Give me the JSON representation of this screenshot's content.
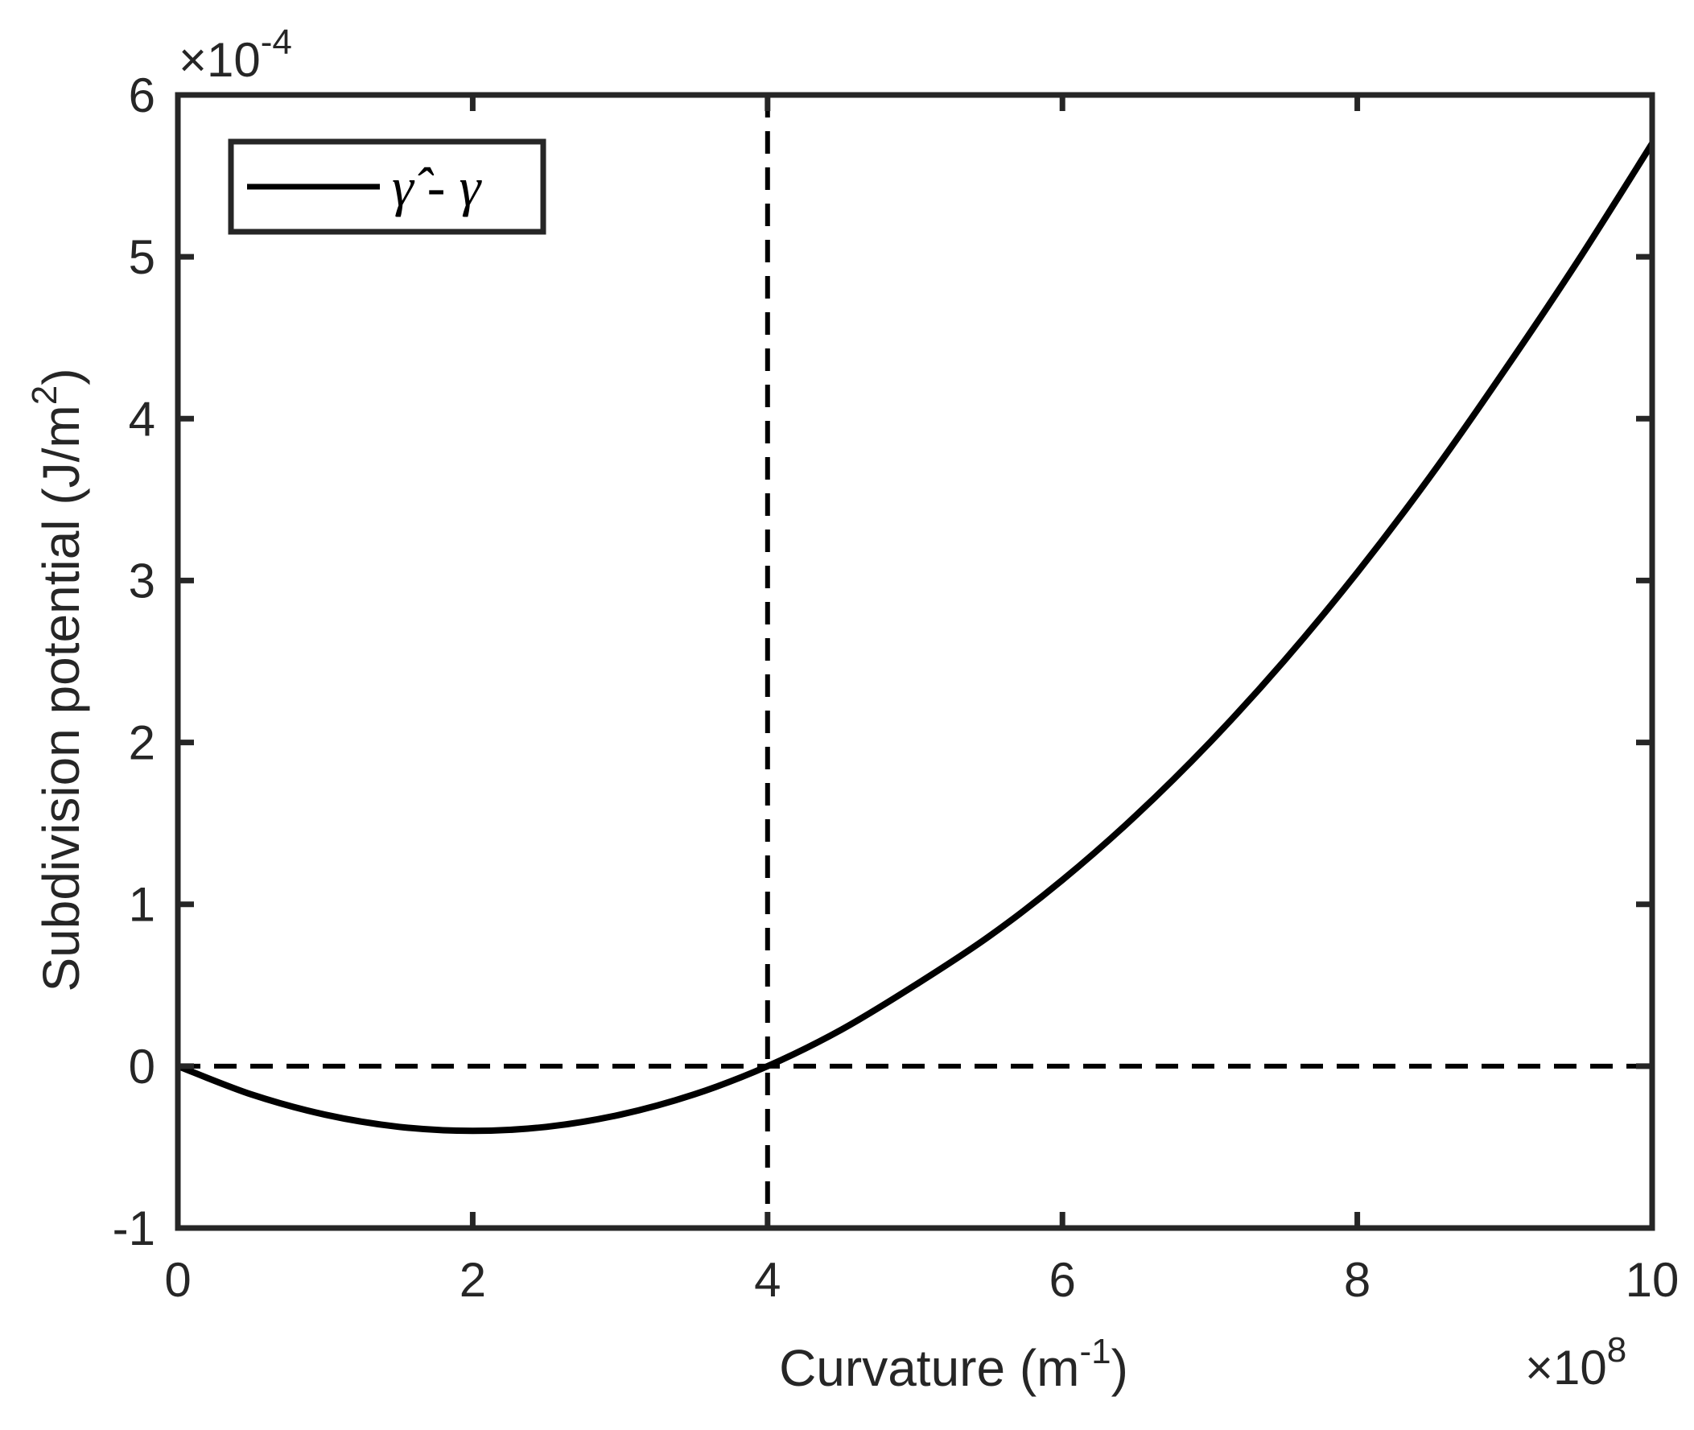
{
  "chart_data": {
    "type": "line",
    "title": "",
    "xlabel": "Curvature (m",
    "xlabel_sup": "-1",
    "xlabel_close": ")",
    "ylabel": "Subdivision potential (J/m",
    "ylabel_sup": "2",
    "ylabel_close": ")",
    "xlim": [
      0,
      10
    ],
    "ylim": [
      -1,
      6
    ],
    "x_ticks": [
      0,
      2,
      4,
      6,
      8,
      10
    ],
    "x_tick_labels": [
      "0",
      "2",
      "4",
      "6",
      "8",
      "10"
    ],
    "y_ticks": [
      -1,
      0,
      1,
      2,
      3,
      4,
      5,
      6
    ],
    "y_tick_labels": [
      "-1",
      "0",
      "1",
      "2",
      "3",
      "4",
      "5",
      "6"
    ],
    "x_multiplier": {
      "base": "×10",
      "exp": "8"
    },
    "y_multiplier": {
      "base": "×10",
      "exp": "-4"
    },
    "grid": false,
    "legend_position": "top-left",
    "series": [
      {
        "name": "γ̂ - γ",
        "style": "solid",
        "color": "#000000",
        "x": [
          0,
          0.5,
          1,
          1.5,
          2,
          2.5,
          3,
          3.5,
          4,
          4.5,
          5,
          5.5,
          6,
          6.5,
          7,
          7.5,
          8,
          8.5,
          9,
          9.5,
          10
        ],
        "y": [
          0,
          -0.175,
          -0.3,
          -0.375,
          -0.4,
          -0.375,
          -0.3,
          -0.175,
          0,
          0.225,
          0.5,
          0.8,
          1.15,
          1.55,
          2.0,
          2.5,
          3.05,
          3.65,
          4.3,
          4.98,
          5.7
        ]
      }
    ],
    "reference_lines": [
      {
        "orientation": "horizontal",
        "value": 0,
        "style": "dashed",
        "color": "#000000"
      },
      {
        "orientation": "vertical",
        "value": 4,
        "style": "dashed",
        "color": "#000000"
      }
    ]
  }
}
